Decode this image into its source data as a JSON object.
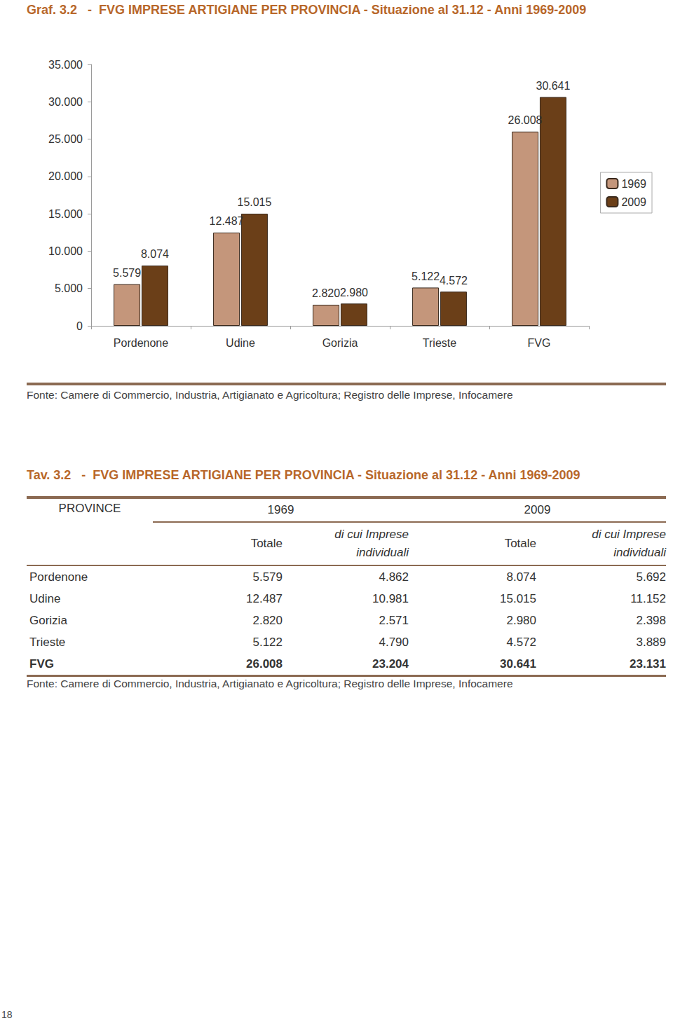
{
  "chart_data": {
    "type": "bar",
    "title": "Graf. 3.2   -  FVG IMPRESE ARTIGIANE PER PROVINCIA - Situazione al 31.12 - Anni 1969-2009",
    "source": "Fonte: Camere di Commercio, Industria, Artigianato e Agricoltura; Registro delle Imprese, Infocamere",
    "categories": [
      "Pordenone",
      "Udine",
      "Gorizia",
      "Trieste",
      "FVG"
    ],
    "series": [
      {
        "name": "1969",
        "color": "#c4967b",
        "values": [
          5579,
          12487,
          2820,
          5122,
          26008
        ],
        "value_labels": [
          "5.579",
          "12.487",
          "2.820",
          "5.122",
          "26.008"
        ]
      },
      {
        "name": "2009",
        "color": "#6b3f18",
        "values": [
          8074,
          15015,
          2980,
          4572,
          30641
        ],
        "value_labels": [
          "8.074",
          "15.015",
          "2.980",
          "4.572",
          "30.641"
        ]
      }
    ],
    "ylim": [
      0,
      35000
    ],
    "yticks": [
      0,
      {
        "value": 5000,
        "label": "5.000"
      },
      {
        "value": 10000,
        "label": "10.000"
      },
      {
        "value": 15000,
        "label": "15.000"
      },
      {
        "value": 20000,
        "label": "20.000"
      },
      {
        "value": 25000,
        "label": "25.000"
      },
      {
        "value": 30000,
        "label": "30.000"
      },
      {
        "value": 35000,
        "label": "35.000"
      }
    ],
    "grid": false,
    "legend": "right",
    "data_labels": true
  },
  "table": {
    "title": "Tav. 3.2   -  FVG IMPRESE ARTIGIANE PER PROVINCIA - Situazione al 31.12 - Anni 1969-2009",
    "header": {
      "first": "PROVINCE",
      "groups": [
        "1969",
        "2009"
      ],
      "columns": [
        "Totale",
        "di cui Imprese individuali",
        "Totale",
        "di cui Imprese individuali"
      ]
    },
    "rows": [
      [
        "Pordenone",
        "5.579",
        "4.862",
        "8.074",
        "5.692"
      ],
      [
        "Udine",
        "12.487",
        "10.981",
        "15.015",
        "11.152"
      ],
      [
        "Gorizia",
        "2.820",
        "2.571",
        "2.980",
        "2.398"
      ],
      [
        "Trieste",
        "5.122",
        "4.790",
        "4.572",
        "3.889"
      ],
      [
        "FVG",
        "26.008",
        "23.204",
        "30.641",
        "23.131"
      ]
    ],
    "source": "Fonte: Camere di Commercio, Industria, Artigianato e Agricoltura; Registro delle Imprese, Infocamere"
  },
  "page_number": "18"
}
